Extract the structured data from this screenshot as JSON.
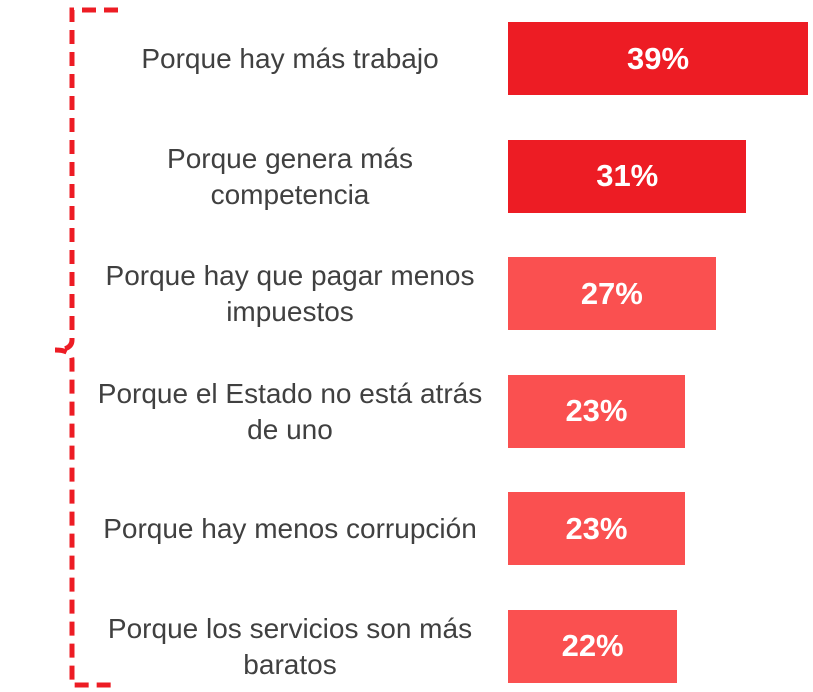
{
  "chart_data": {
    "type": "bar",
    "orientation": "horizontal",
    "categories": [
      "Porque hay más trabajo",
      "Porque genera más competencia",
      "Porque hay que pagar menos impuestos",
      "Porque el Estado no está atrás de uno",
      "Porque hay menos corrupción",
      "Porque los servicios son más baratos"
    ],
    "values": [
      39,
      31,
      27,
      23,
      23,
      22
    ],
    "value_labels": [
      "39%",
      "31%",
      "27%",
      "23%",
      "23%",
      "22%"
    ],
    "colors": [
      "#ed1c24",
      "#ed1c24",
      "#fa5050",
      "#fa5050",
      "#fa5050",
      "#fa5050"
    ]
  }
}
